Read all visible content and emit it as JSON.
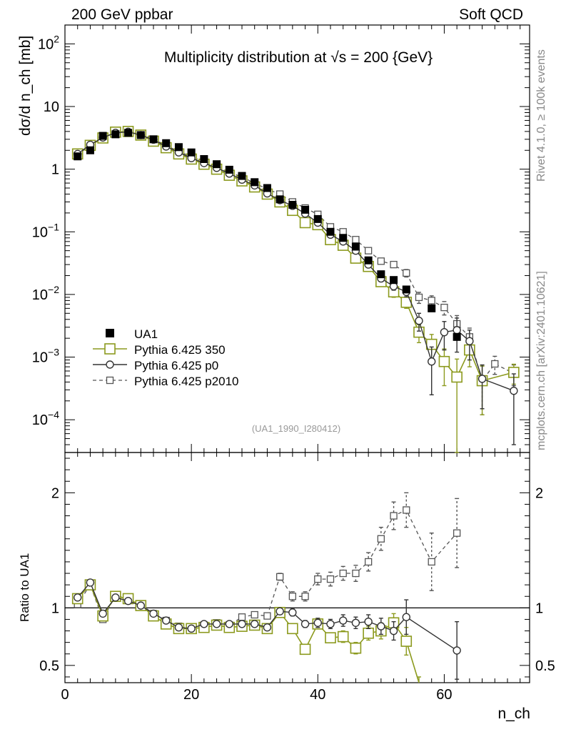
{
  "chart_data": {
    "type": "scatter",
    "header_left": "200 GeV ppbar",
    "header_right": "Soft QCD",
    "title": "Multiplicity distribution at √s = 200 {GeV}",
    "ylabel": "dσ/d n_ch [mb]",
    "ratio_ylabel": "Ratio to UA1",
    "xlabel": "n_ch",
    "analysis_tag": "(UA1_1990_I280412)",
    "side_right_top": "Rivet 4.1.0, ≥ 100k events",
    "side_right_bottom": "mcplots.cern.ch [arXiv:2401.10621]",
    "xlim": [
      0,
      73.5
    ],
    "ylim": [
      3e-05,
      200
    ],
    "ratio_ylim": [
      0.35,
      2.35
    ],
    "x_ticks": [
      "0",
      "20",
      "40",
      "60"
    ],
    "y_ticks": [
      {
        "value": 0.0001,
        "base": "10",
        "exp": "−4"
      },
      {
        "value": 0.001,
        "base": "10",
        "exp": "−3"
      },
      {
        "value": 0.01,
        "base": "10",
        "exp": "−2"
      },
      {
        "value": 0.1,
        "base": "10",
        "exp": "−1"
      },
      {
        "value": 1,
        "base": "1",
        "exp": ""
      },
      {
        "value": 10,
        "base": "10",
        "exp": ""
      },
      {
        "value": 100,
        "base": "10",
        "exp": "2"
      }
    ],
    "ratio_ticks": [
      {
        "value": 0.5,
        "label": "0.5"
      },
      {
        "value": 1,
        "label": "1"
      },
      {
        "value": 2,
        "label": "2"
      }
    ],
    "legend": [
      {
        "label": "UA1",
        "style": "data"
      },
      {
        "label": "Pythia 6.425 350",
        "style": "olive"
      },
      {
        "label": "Pythia 6.425 p0",
        "style": "circle"
      },
      {
        "label": "Pythia 6.425 p2010",
        "style": "dashed"
      }
    ],
    "x": [
      2,
      4,
      6,
      8,
      10,
      12,
      14,
      16,
      18,
      20,
      22,
      24,
      26,
      28,
      30,
      32,
      34,
      36,
      38,
      40,
      42,
      44,
      46,
      48,
      50,
      52,
      54,
      56,
      58,
      60,
      62,
      64,
      66,
      68,
      71
    ],
    "series": [
      {
        "name": "UA1",
        "color": "#000000",
        "values": [
          1.6,
          2.0,
          3.4,
          3.6,
          3.8,
          3.5,
          3.0,
          2.6,
          2.25,
          1.85,
          1.45,
          1.2,
          0.98,
          0.78,
          0.62,
          0.5,
          0.33,
          0.27,
          0.225,
          0.16,
          0.1,
          0.08,
          0.058,
          0.035,
          0.021,
          0.017,
          0.012,
          null,
          0.006,
          null,
          0.0021,
          null,
          null,
          null,
          null
        ]
      },
      {
        "name": "Pythia 6.425 350",
        "color": "#8c9a1e",
        "values": [
          1.75,
          2.4,
          3.15,
          3.9,
          4.0,
          3.5,
          2.8,
          2.2,
          1.75,
          1.45,
          1.2,
          1.0,
          0.8,
          0.65,
          0.52,
          0.4,
          0.3,
          0.22,
          0.14,
          0.13,
          0.075,
          0.061,
          0.038,
          0.028,
          0.016,
          0.011,
          0.0075,
          0.0025,
          0.0016,
          0.00085,
          0.00048,
          0.0013,
          0.00042,
          null,
          0.00057
        ],
        "err": [
          0,
          0,
          0,
          0,
          0,
          0,
          0,
          0,
          0,
          0,
          0,
          0,
          0,
          0,
          0,
          0,
          0,
          0,
          0,
          0,
          0,
          0,
          0,
          0,
          0.0015,
          0.002,
          0.0015,
          0.0008,
          0.0007,
          0.0005,
          0.00045,
          0.0006,
          0.0003,
          0,
          0.0002
        ]
      },
      {
        "name": "Pythia 6.425 p0",
        "color": "#333333",
        "values": [
          1.75,
          2.45,
          3.2,
          3.8,
          3.95,
          3.5,
          2.95,
          2.3,
          1.85,
          1.5,
          1.25,
          1.05,
          0.85,
          0.68,
          0.55,
          0.41,
          0.32,
          0.26,
          0.195,
          0.14,
          0.09,
          0.07,
          0.05,
          0.03,
          0.018,
          0.0135,
          0.011,
          0.0038,
          0.00085,
          0.0025,
          0.0027,
          0.0018,
          0.00045,
          null,
          0.00029
        ],
        "err": [
          0,
          0,
          0,
          0,
          0,
          0,
          0,
          0,
          0,
          0,
          0,
          0,
          0,
          0,
          0,
          0,
          0,
          0,
          0,
          0,
          0,
          0,
          0,
          0,
          0.002,
          0.0018,
          0.0018,
          0.0012,
          0.0006,
          0.0012,
          0.0015,
          0.0009,
          0.0003,
          0,
          0.00025
        ]
      },
      {
        "name": "Pythia 6.425 p2010",
        "color": "#555555",
        "values": [
          1.7,
          2.4,
          3.1,
          3.8,
          4.1,
          3.6,
          3.0,
          2.4,
          1.9,
          1.6,
          1.3,
          1.05,
          0.9,
          0.75,
          0.6,
          0.48,
          0.4,
          0.3,
          0.24,
          0.19,
          0.12,
          0.1,
          0.075,
          0.05,
          0.034,
          0.03,
          0.022,
          0.009,
          0.008,
          0.0062,
          0.0034,
          0.0021,
          0.00042,
          0.00078,
          0.00055
        ],
        "err": [
          0,
          0,
          0,
          0,
          0,
          0,
          0,
          0,
          0,
          0,
          0,
          0,
          0,
          0,
          0,
          0,
          0,
          0,
          0,
          0,
          0,
          0,
          0,
          0,
          0.003,
          0.003,
          0.003,
          0.0018,
          0.0015,
          0.0015,
          0.0012,
          0.0008,
          0.0003,
          0.00025,
          0.0002
        ]
      }
    ],
    "ratio_series": [
      {
        "name": "Pythia 6.425 350",
        "values": [
          1.08,
          1.2,
          0.93,
          1.1,
          1.08,
          1.02,
          0.93,
          0.86,
          0.82,
          0.82,
          0.83,
          0.85,
          0.83,
          0.84,
          0.85,
          0.82,
          0.96,
          0.82,
          0.64,
          0.86,
          0.74,
          0.75,
          0.65,
          0.78,
          0.8,
          0.87,
          0.71,
          0.25
        ],
        "err": [
          0,
          0,
          0,
          0,
          0,
          0,
          0,
          0,
          0,
          0,
          0,
          0,
          0,
          0,
          0,
          0,
          0,
          0.03,
          0.03,
          0.04,
          0.04,
          0.05,
          0.05,
          0.06,
          0.07,
          0.08,
          0.12,
          0.15
        ]
      },
      {
        "name": "Pythia 6.425 p0",
        "values": [
          1.09,
          1.22,
          0.95,
          1.09,
          1.06,
          1.02,
          0.95,
          0.89,
          0.83,
          0.82,
          0.86,
          0.86,
          0.86,
          0.86,
          0.86,
          0.83,
          0.97,
          0.96,
          0.86,
          0.87,
          0.86,
          0.89,
          0.87,
          0.88,
          0.84,
          0.8,
          0.92,
          null,
          null,
          null,
          0.63
        ],
        "err": [
          0,
          0,
          0,
          0,
          0,
          0,
          0,
          0,
          0,
          0,
          0,
          0,
          0,
          0,
          0,
          0,
          0,
          0.03,
          0.03,
          0.04,
          0.04,
          0.05,
          0.05,
          0.06,
          0.07,
          0.08,
          0.15,
          0,
          0,
          0,
          0.25
        ]
      },
      {
        "name": "Pythia 6.425 p2010",
        "values": [
          1.03,
          1.2,
          0.9,
          1.11,
          1.08,
          1.03,
          0.95,
          0.89,
          0.84,
          0.82,
          0.85,
          0.87,
          0.85,
          0.92,
          0.94,
          0.93,
          1.27,
          1.1,
          1.1,
          1.25,
          1.25,
          1.3,
          1.3,
          1.4,
          1.6,
          1.8,
          1.85,
          null,
          1.4,
          null,
          1.65
        ],
        "err": [
          0,
          0,
          0,
          0,
          0,
          0,
          0,
          0,
          0,
          0,
          0,
          0,
          0,
          0,
          0,
          0,
          0.03,
          0.04,
          0.04,
          0.05,
          0.06,
          0.06,
          0.07,
          0.08,
          0.1,
          0.12,
          0.15,
          0,
          0.25,
          0,
          0.3
        ]
      }
    ]
  }
}
